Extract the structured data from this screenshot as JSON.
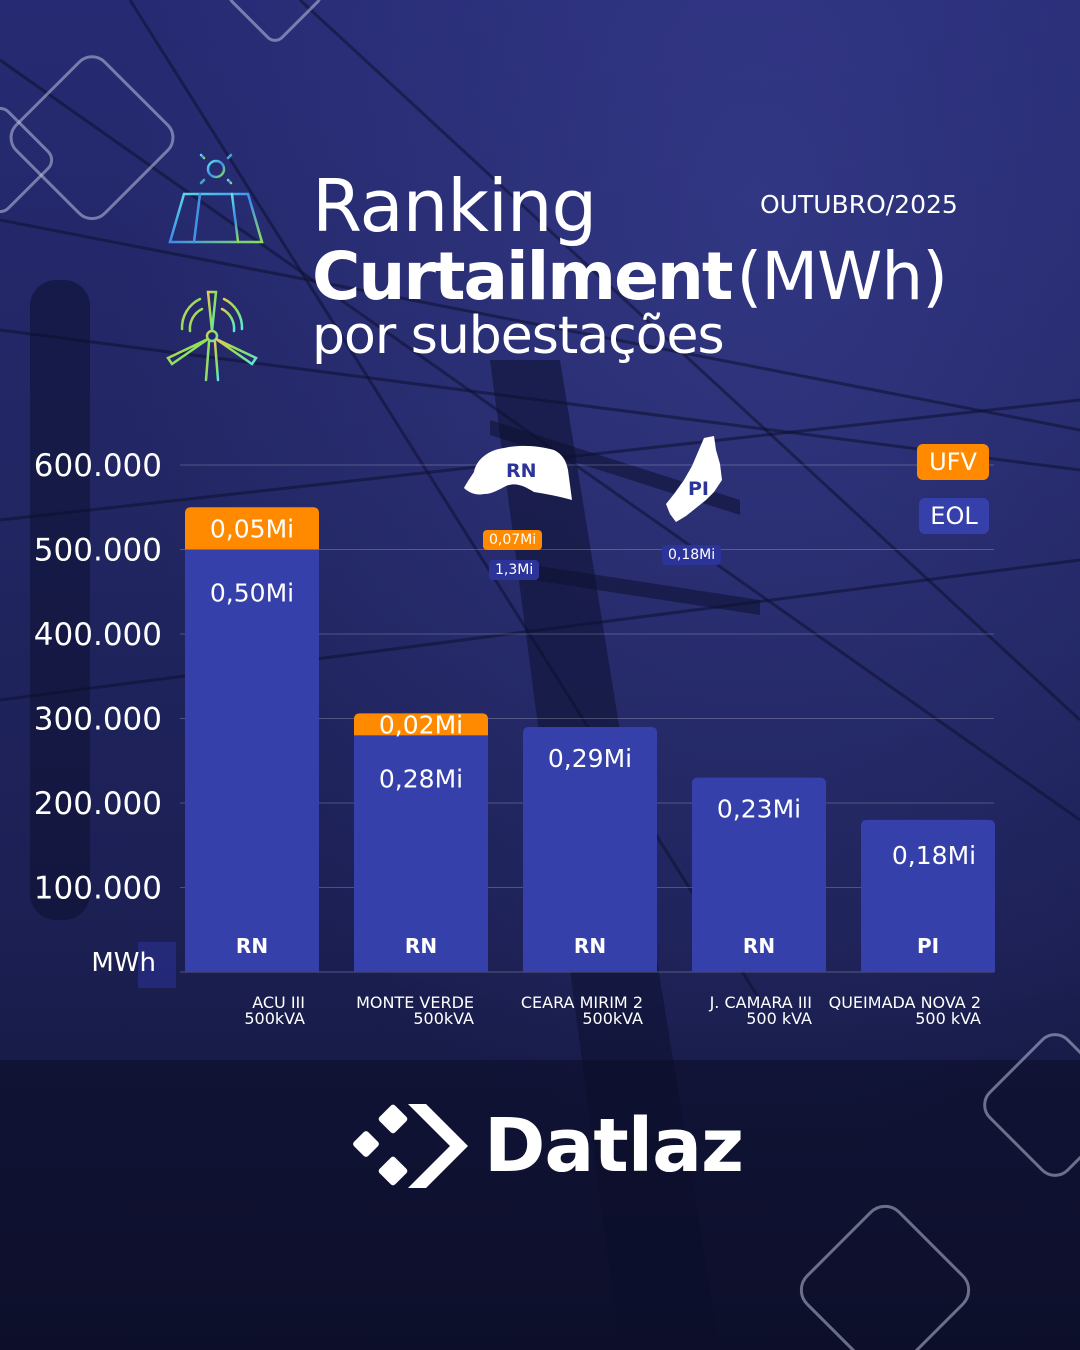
{
  "header": {
    "title_line1": "Ranking",
    "title_bold": "Curtailment",
    "title_unit": "(MWh)",
    "title_line3": "por subestações",
    "month": "OUTUBRO/2025"
  },
  "legend": {
    "ufv": "UFV",
    "eol": "EOL"
  },
  "colors": {
    "ufv": "#ff8a00",
    "eol": "#3640aa",
    "background": "#222663"
  },
  "maps": [
    {
      "state": "RN",
      "ufv_total": "0,07Mi",
      "eol_total": "1,3Mi"
    },
    {
      "state": "PI",
      "eol_total": "0,18Mi"
    }
  ],
  "brand": {
    "name": "Datlaz"
  },
  "chart_data": {
    "type": "bar",
    "stacked": true,
    "unit_label": "MWh",
    "y_ticks": [
      "100.000",
      "200.000",
      "300.000",
      "400.000",
      "500.000",
      "600.000"
    ],
    "ylim": [
      0,
      600000
    ],
    "grid": true,
    "legend_position": "top-right",
    "categories": [
      {
        "line1": "ACU III",
        "line2": "500kVA",
        "state": "RN"
      },
      {
        "line1": "MONTE VERDE",
        "line2": "500kVA",
        "state": "RN"
      },
      {
        "line1": "CEARA MIRIM 2",
        "line2": "500kVA",
        "state": "RN"
      },
      {
        "line1": "J. CAMARA III",
        "line2": "500 kVA",
        "state": "RN"
      },
      {
        "line1": "QUEIMADA NOVA 2",
        "line2": "500 kVA",
        "state": "PI"
      }
    ],
    "series": [
      {
        "name": "EOL",
        "values": [
          500000,
          280000,
          290000,
          230000,
          180000
        ],
        "labels": [
          "0,50Mi",
          "0,28Mi",
          "0,29Mi",
          "0,23Mi",
          "0,18Mi"
        ]
      },
      {
        "name": "UFV",
        "values": [
          50000,
          20000,
          0,
          0,
          0
        ],
        "labels": [
          "0,05Mi",
          "0,02Mi",
          "",
          "",
          ""
        ]
      }
    ]
  }
}
